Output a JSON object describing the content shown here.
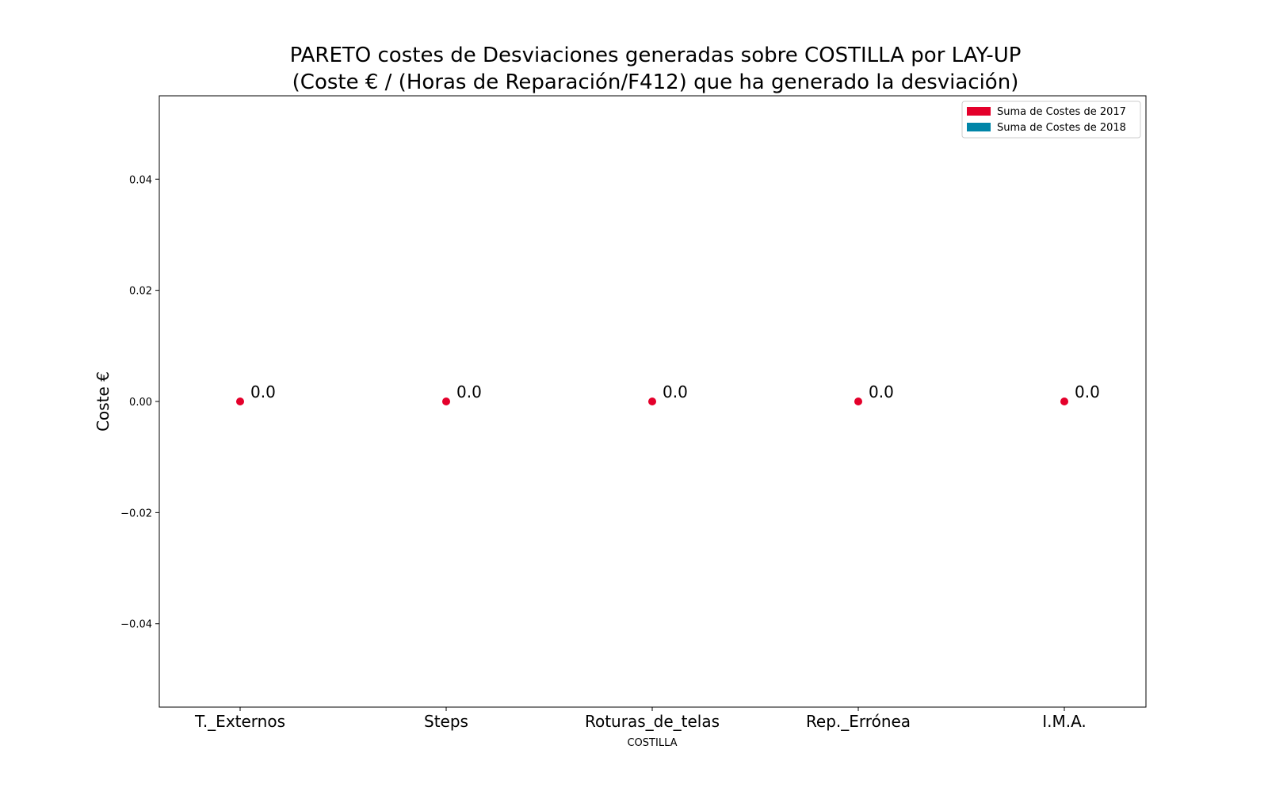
{
  "chart_data": {
    "type": "scatter",
    "title_line1": "PARETO costes de Desviaciones  generadas  sobre COSTILLA por LAY-UP",
    "title_line2": "(Coste € / (Horas de Reparación/F412) que ha generado la desviación)",
    "xlabel": "COSTILLA",
    "ylabel": "Coste €",
    "categories": [
      "T._Externos",
      "Steps",
      "Roturas_de_telas",
      "Rep._Errónea",
      "I.M.A."
    ],
    "series": [
      {
        "name": "Suma de Costes de 2017",
        "color": "#e4002b",
        "values": [
          0.0,
          0.0,
          0.0,
          0.0,
          0.0
        ],
        "data_labels": [
          "0.0",
          "0.0",
          "0.0",
          "0.0",
          "0.0"
        ]
      },
      {
        "name": "Suma de Costes de 2018",
        "color": "#0085a8",
        "values": []
      }
    ],
    "ylim": [
      -0.055,
      0.055
    ],
    "yticks": [
      -0.04,
      -0.02,
      0.0,
      0.02,
      0.04
    ],
    "ytick_labels": [
      "−0.04",
      "−0.02",
      "0.00",
      "0.02",
      "0.04"
    ],
    "grid": false,
    "legend_position": "top-right"
  }
}
